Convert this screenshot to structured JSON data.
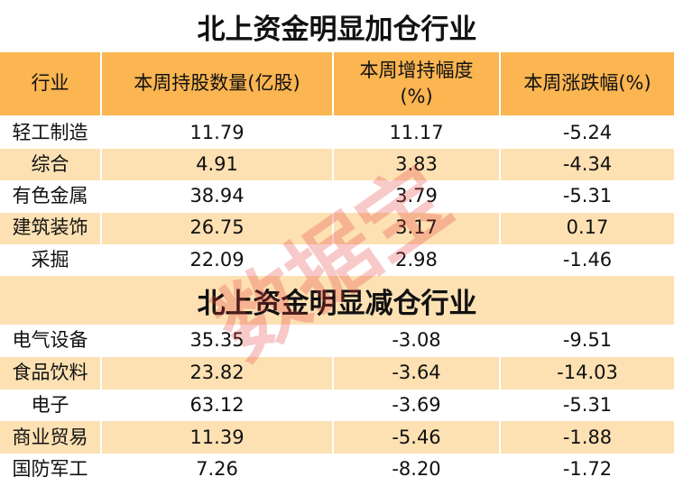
{
  "header": [
    "行业",
    "本周持股数量(亿股)",
    "本周增持幅度\n(%)",
    "本周涨跌幅(%)"
  ],
  "sections": [
    {
      "title": "北上资金明显加仓行业",
      "rows": [
        [
          "轻工制造",
          "11.79",
          "11.17",
          "-5.24"
        ],
        [
          "综合",
          "4.91",
          "3.83",
          "-4.34"
        ],
        [
          "有色金属",
          "38.94",
          "3.79",
          "-5.31"
        ],
        [
          "建筑装饰",
          "26.75",
          "3.17",
          "0.17"
        ],
        [
          "采掘",
          "22.09",
          "2.98",
          "-1.46"
        ]
      ]
    },
    {
      "title": "北上资金明显减仓行业",
      "rows": [
        [
          "电气设备",
          "35.35",
          "-3.08",
          "-9.51"
        ],
        [
          "食品饮料",
          "23.82",
          "-3.64",
          "-14.03"
        ],
        [
          "电子",
          "63.12",
          "-3.69",
          "-5.31"
        ],
        [
          "商业贸易",
          "11.39",
          "-5.46",
          "-1.88"
        ],
        [
          "国防军工",
          "7.26",
          "-8.20",
          "-1.72"
        ]
      ]
    }
  ],
  "watermark": "数据宝"
}
